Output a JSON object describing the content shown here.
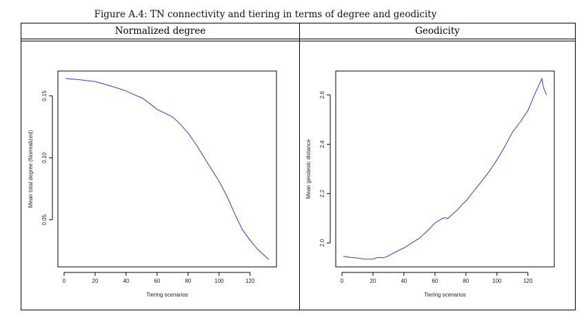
{
  "caption": "Figure A.4: TN connectivity and tiering in terms of degree and geodicity",
  "columns": [
    "Normalized degree",
    "Geodicity"
  ],
  "chart_data": [
    {
      "type": "line",
      "title": "Normalized degree",
      "xlabel": "Tiering scenarios",
      "ylabel": "Mean total degree (Normalized)",
      "xlim": [
        -4,
        137
      ],
      "ylim": [
        0.012,
        0.17
      ],
      "xticks": [
        0,
        20,
        40,
        60,
        80,
        100,
        120
      ],
      "yticks": [
        0.05,
        0.1,
        0.15
      ],
      "ytick_labels": [
        "0.05",
        "0.10",
        "0.15"
      ],
      "color": "#3333ee",
      "x": [
        1,
        10,
        20,
        30,
        40,
        45,
        50,
        55,
        60,
        65,
        70,
        75,
        80,
        85,
        90,
        95,
        100,
        105,
        110,
        115,
        120,
        125,
        132
      ],
      "y": [
        0.164,
        0.163,
        0.1615,
        0.158,
        0.154,
        0.151,
        0.1485,
        0.144,
        0.139,
        0.136,
        0.133,
        0.127,
        0.12,
        0.111,
        0.101,
        0.091,
        0.081,
        0.069,
        0.055,
        0.042,
        0.0335,
        0.026,
        0.018
      ]
    },
    {
      "type": "line",
      "title": "Geodicity",
      "xlabel": "Tiering scenarios",
      "ylabel": "Mean geodesic distance",
      "xlim": [
        -4,
        137
      ],
      "ylim": [
        1.903,
        2.697
      ],
      "xticks": [
        0,
        20,
        40,
        60,
        80,
        100,
        120
      ],
      "yticks": [
        2.0,
        2.2,
        2.4,
        2.6
      ],
      "ytick_labels": [
        "2.0",
        "2.2",
        "2.4",
        "2.6"
      ],
      "color": "#3333ee",
      "x": [
        1,
        5,
        10,
        15,
        20,
        23,
        27,
        30,
        35,
        40,
        45,
        50,
        55,
        60,
        65,
        67,
        68,
        70,
        75,
        78,
        80,
        85,
        90,
        95,
        100,
        105,
        110,
        115,
        120,
        125,
        129,
        130,
        132
      ],
      "y": [
        1.946,
        1.942,
        1.939,
        1.934,
        1.935,
        1.941,
        1.94,
        1.948,
        1.965,
        1.98,
        2.0,
        2.02,
        2.048,
        2.081,
        2.1,
        2.103,
        2.098,
        2.109,
        2.137,
        2.16,
        2.17,
        2.21,
        2.249,
        2.29,
        2.337,
        2.39,
        2.449,
        2.49,
        2.537,
        2.612,
        2.666,
        2.63,
        2.6
      ]
    }
  ]
}
